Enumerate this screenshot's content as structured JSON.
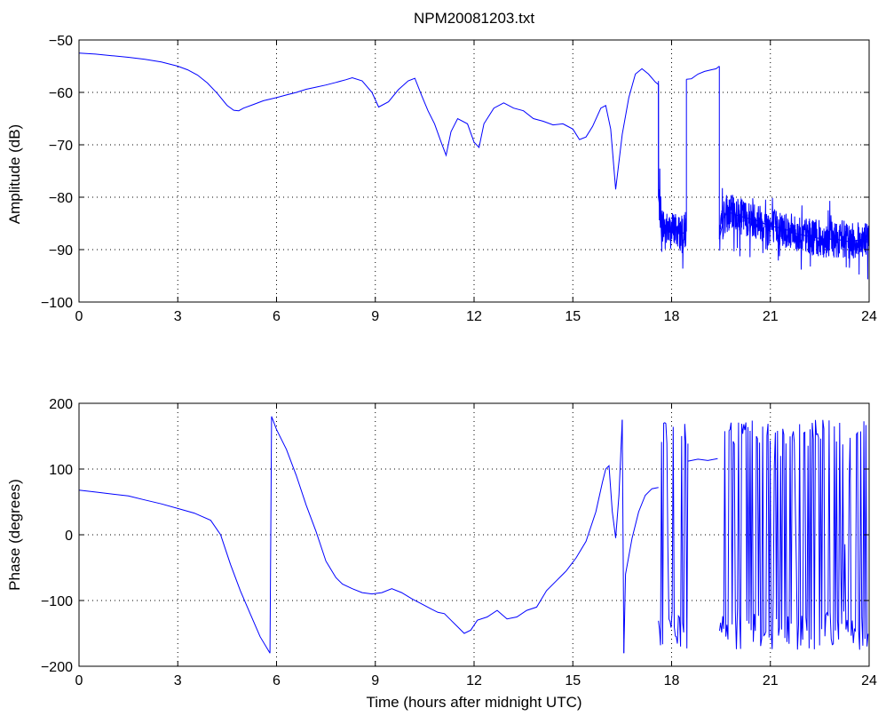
{
  "figure": {
    "title": "NPM20081203.txt",
    "xlabel": "Time (hours after midnight UTC)"
  },
  "colors": {
    "series": "#0000ff",
    "axes": "#000000",
    "grid": "#000000",
    "background": "#ffffff"
  },
  "chart_data": [
    {
      "type": "line",
      "title": "NPM20081203.txt",
      "xlabel": "",
      "ylabel": "Amplitude (dB)",
      "xlim": [
        0,
        24
      ],
      "ylim": [
        -100,
        -50
      ],
      "xticks": [
        0,
        3,
        6,
        9,
        12,
        15,
        18,
        21,
        24
      ],
      "yticks": [
        -100,
        -90,
        -80,
        -70,
        -60,
        -50
      ],
      "xtick_labels": [
        "0",
        "3",
        "6",
        "9",
        "12",
        "15",
        "18",
        "21",
        "24"
      ],
      "ytick_labels": [
        "−100",
        "−90",
        "−80",
        "−70",
        "−60",
        "−50"
      ],
      "grid": true,
      "series": [
        {
          "segments": [
            {
              "x": [
                0,
                0.5,
                1,
                1.5,
                2,
                2.5,
                3,
                3.3,
                3.6,
                3.9,
                4.2,
                4.5,
                4.7,
                4.85,
                5.0,
                5.3,
                5.6,
                6,
                6.3,
                6.6,
                6.9,
                7.2,
                7.5,
                7.8,
                8.1,
                8.3,
                8.6,
                8.9,
                9.1,
                9.4,
                9.7,
                10,
                10.2,
                10.4,
                10.6,
                10.8,
                11,
                11.15,
                11.3,
                11.5,
                11.8,
                12,
                12.15,
                12.3,
                12.6,
                12.9,
                13.2,
                13.5,
                13.8,
                14.1,
                14.4,
                14.7,
                15,
                15.2,
                15.4,
                15.6,
                15.85,
                16.0,
                16.15,
                16.3,
                16.5,
                16.7,
                16.9,
                17.1,
                17.3,
                17.5,
                17.6
              ],
              "y": [
                -52.5,
                -52.7,
                -53,
                -53.3,
                -53.7,
                -54.2,
                -55,
                -55.7,
                -56.7,
                -58.2,
                -60.2,
                -62.5,
                -63.4,
                -63.5,
                -63,
                -62.3,
                -61.6,
                -61,
                -60.5,
                -60,
                -59.4,
                -59,
                -58.6,
                -58.1,
                -57.6,
                -57.2,
                -57.8,
                -60,
                -62.8,
                -61.8,
                -59.5,
                -57.8,
                -57.3,
                -60.5,
                -63.5,
                -66,
                -69.5,
                -72,
                -67.5,
                -65,
                -66,
                -69.5,
                -70.5,
                -66,
                -63,
                -62,
                -63,
                -63.5,
                -65,
                -65.5,
                -66.2,
                -66,
                -67,
                -69,
                -68.5,
                -66.5,
                -63,
                -62.5,
                -67,
                -78.5,
                -68,
                -61,
                -56.5,
                -55.5,
                -56.5,
                -58,
                -58.5
              ]
            },
            {
              "x": [
                17.6,
                17.7,
                17.9,
                18.1,
                18.3,
                18.45
              ],
              "y": [
                -80,
                -85,
                -86.5,
                -86,
                -87,
                -86.5
              ]
            },
            {
              "x": [
                18.45,
                18.6,
                18.8,
                19.0,
                19.2,
                19.35,
                19.45
              ],
              "y": [
                -57.5,
                -57.4,
                -56.5,
                -56,
                -55.7,
                -55.5,
                -55
              ]
            },
            {
              "x": [
                19.45,
                19.6,
                19.8,
                20.0,
                20.3,
                20.6,
                21.0,
                21.4,
                21.8,
                22.2,
                22.6,
                23.0,
                23.4,
                23.8,
                24.0
              ],
              "y": [
                -88,
                -83.5,
                -83,
                -83.5,
                -84,
                -84.5,
                -85.5,
                -86,
                -87,
                -87.5,
                -88,
                -88,
                -88.5,
                -88,
                -88
              ]
            }
          ],
          "noise": {
            "x_start": 17.6,
            "x_end": 24,
            "exclude": [
              [
                18.45,
                19.45
              ]
            ],
            "spread_db": 3.5
          }
        }
      ]
    },
    {
      "type": "line",
      "title": "",
      "xlabel": "Time (hours after midnight UTC)",
      "ylabel": "Phase (degrees)",
      "xlim": [
        0,
        24
      ],
      "ylim": [
        -200,
        200
      ],
      "xticks": [
        0,
        3,
        6,
        9,
        12,
        15,
        18,
        21,
        24
      ],
      "yticks": [
        -200,
        -100,
        0,
        100,
        200
      ],
      "xtick_labels": [
        "0",
        "3",
        "6",
        "9",
        "12",
        "15",
        "18",
        "21",
        "24"
      ],
      "ytick_labels": [
        "−200",
        "−100",
        "0",
        "100",
        "200"
      ],
      "grid": true,
      "series": [
        {
          "segments": [
            {
              "x": [
                0,
                0.5,
                1,
                1.5,
                2,
                2.5,
                3,
                3.5,
                4.0,
                4.3,
                4.6,
                4.9,
                5.2,
                5.5,
                5.8
              ],
              "y": [
                68,
                65,
                62,
                59,
                53,
                47,
                40,
                33,
                22,
                0,
                -45,
                -85,
                -120,
                -155,
                -180
              ]
            },
            {
              "x": [
                5.8,
                5.85,
                6.0,
                6.3,
                6.6,
                6.9,
                7.2,
                7.5,
                7.8,
                8.0,
                8.3,
                8.6,
                8.9,
                9.2,
                9.5,
                9.8,
                10.1,
                10.4,
                10.7,
                10.9,
                11.1,
                11.3,
                11.5,
                11.7,
                11.9,
                12.1,
                12.4,
                12.7,
                13.0,
                13.3,
                13.6,
                13.9,
                14.2,
                14.5,
                14.8,
                15.1,
                15.4,
                15.7,
                15.9,
                16.0,
                16.1,
                16.2,
                16.3,
                16.4,
                16.5
              ],
              "y": [
                -180,
                180,
                160,
                130,
                90,
                45,
                5,
                -40,
                -65,
                -75,
                -82,
                -88,
                -90,
                -88,
                -82,
                -88,
                -97,
                -105,
                -113,
                -118,
                -120,
                -130,
                -140,
                -150,
                -145,
                -130,
                -125,
                -115,
                -128,
                -125,
                -115,
                -110,
                -85,
                -70,
                -55,
                -35,
                -10,
                35,
                80,
                100,
                105,
                35,
                -5,
                60,
                175
              ]
            },
            {
              "x": [
                16.55,
                16.6,
                16.8,
                17.0,
                17.2,
                17.4,
                17.6
              ],
              "y": [
                -180,
                -60,
                -5,
                35,
                60,
                70,
                72
              ]
            },
            {
              "x": [
                18.5,
                18.8,
                19.1,
                19.4
              ],
              "y": [
                112,
                115,
                113,
                116
              ]
            }
          ],
          "jumps": {
            "x_start": 17.6,
            "x_end": 24,
            "exclude": [
              [
                18.5,
                19.45
              ]
            ],
            "count": 200
          }
        }
      ]
    }
  ]
}
